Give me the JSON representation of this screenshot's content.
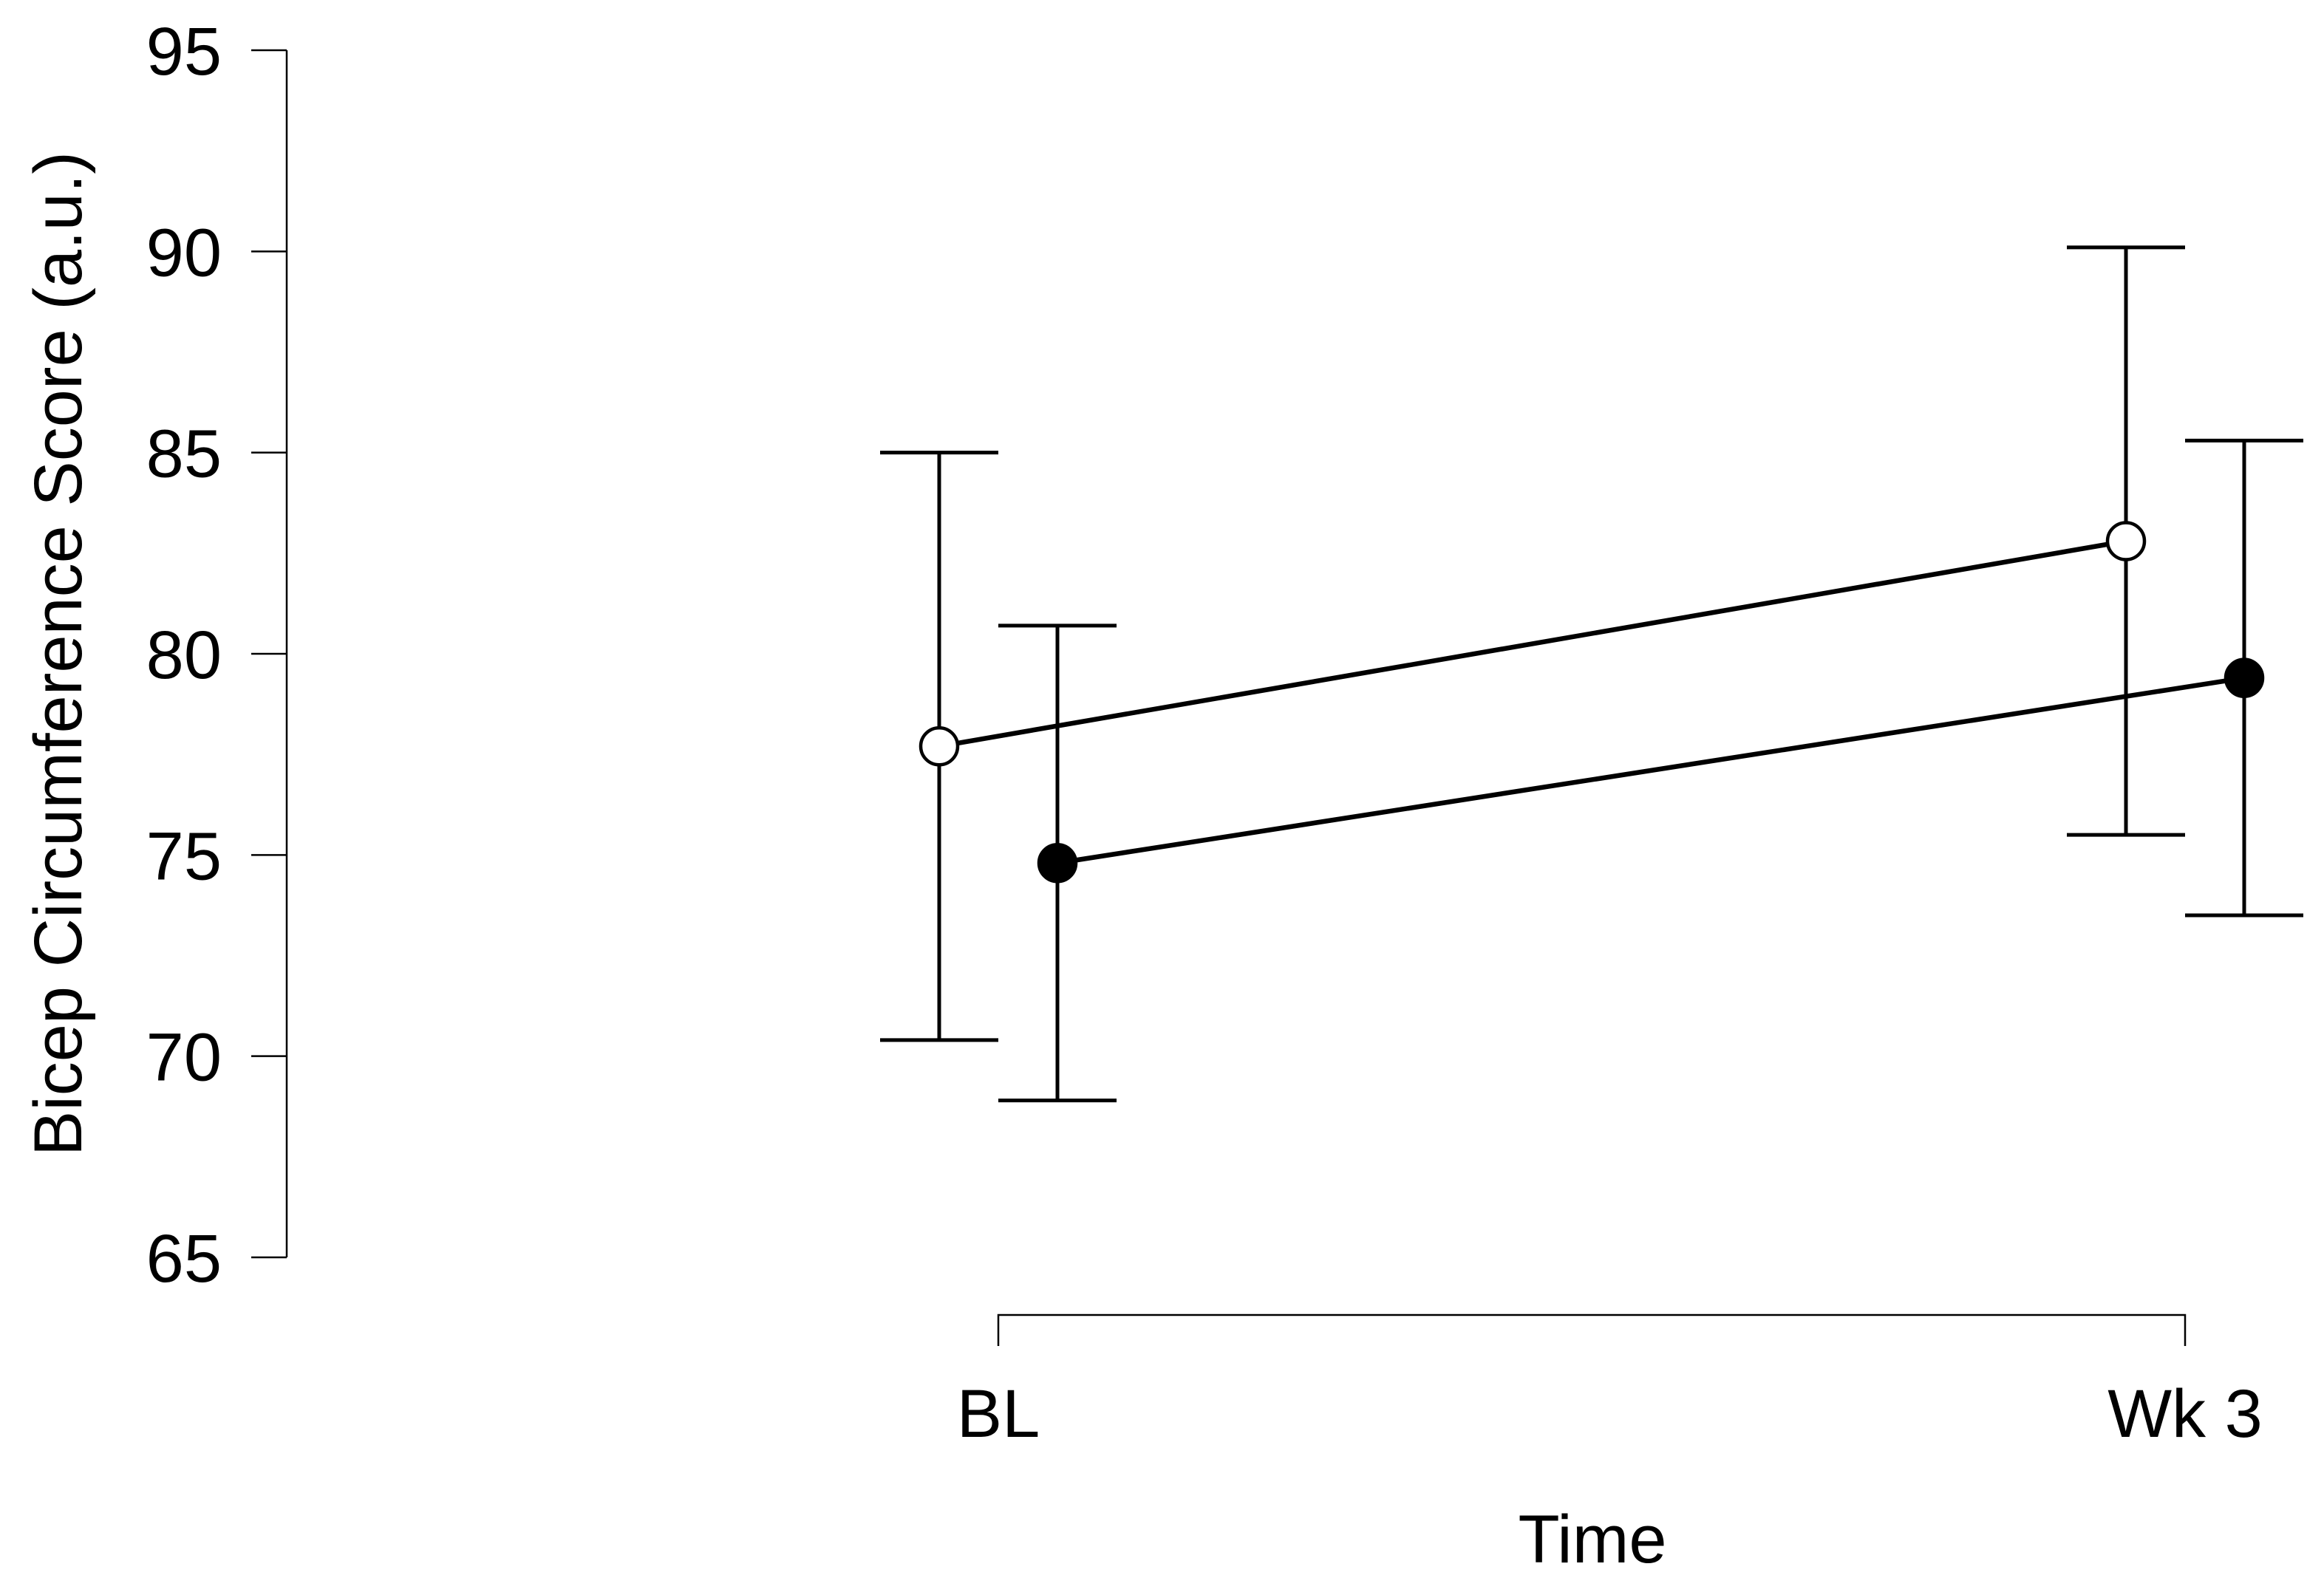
{
  "chart_data": {
    "type": "line",
    "title": "",
    "xlabel": "Time",
    "ylabel": "Bicep Circumference Score (a.u.)",
    "categories": [
      "BL",
      "Wk 3"
    ],
    "ylim": [
      65,
      95
    ],
    "yticks": [
      "65",
      "70",
      "75",
      "80",
      "85",
      "90",
      "95"
    ],
    "grid": false,
    "legend": "none",
    "series": [
      {
        "marker": "open-circle",
        "color": "#ffffff",
        "values": [
          77.7,
          82.8
        ],
        "lower": [
          70.4,
          75.5
        ],
        "upper": [
          85.0,
          90.1
        ]
      },
      {
        "marker": "filled-circle",
        "color": "#000000",
        "values": [
          74.8,
          79.4
        ],
        "lower": [
          68.9,
          73.5
        ],
        "upper": [
          80.7,
          85.3
        ]
      }
    ]
  }
}
